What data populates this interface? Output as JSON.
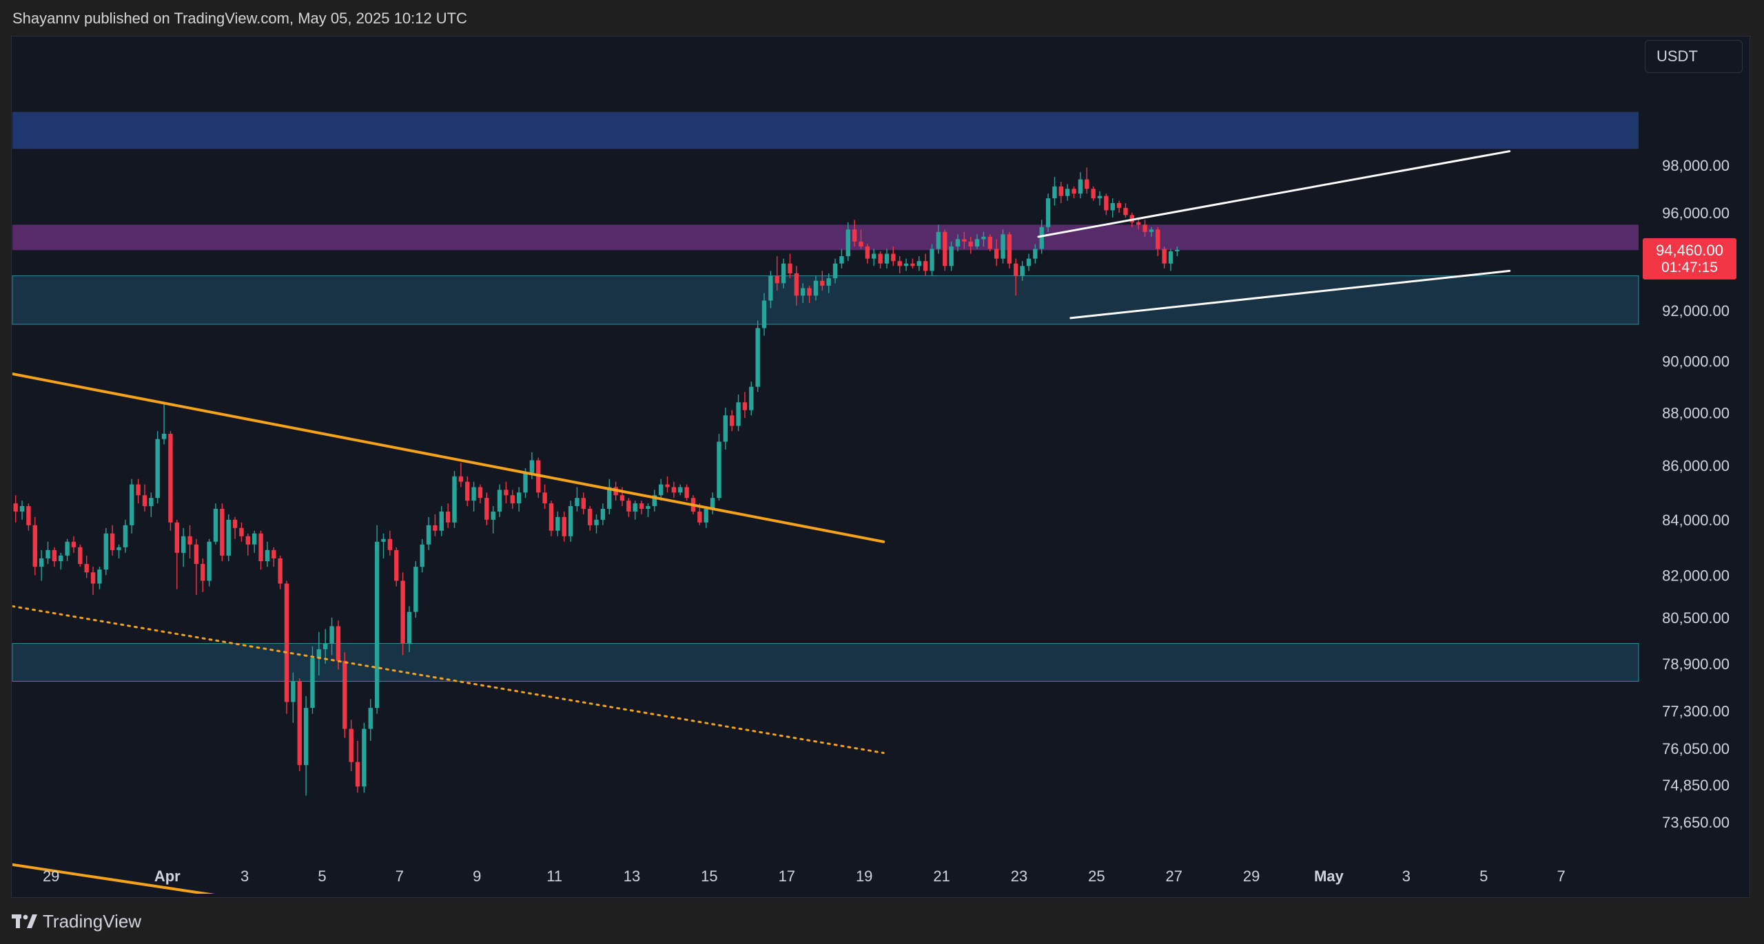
{
  "header": {
    "publish_text": "Shayannv published on TradingView.com, May 05, 2025 10:12 UTC"
  },
  "currency_badge": "USDT",
  "footer": {
    "brand": "TradingView"
  },
  "chart_data": {
    "type": "candlestick",
    "title": "",
    "xlabel": "",
    "ylabel": "",
    "y_scale": "log",
    "y_ticks": [
      {
        "label": "98,000.00",
        "value": 98000
      },
      {
        "label": "96,000.00",
        "value": 96000
      },
      {
        "label": "92,000.00",
        "value": 92000
      },
      {
        "label": "90,000.00",
        "value": 90000
      },
      {
        "label": "88,000.00",
        "value": 88000
      },
      {
        "label": "86,000.00",
        "value": 86000
      },
      {
        "label": "84,000.00",
        "value": 84000
      },
      {
        "label": "82,000.00",
        "value": 82000
      },
      {
        "label": "80,500.00",
        "value": 80500
      },
      {
        "label": "78,900.00",
        "value": 78900
      },
      {
        "label": "77,300.00",
        "value": 77300
      },
      {
        "label": "76,050.00",
        "value": 76050
      },
      {
        "label": "74,850.00",
        "value": 74850
      },
      {
        "label": "73,650.00",
        "value": 73650
      }
    ],
    "x_ticks": [
      {
        "label": "29",
        "date": "2025-03-29",
        "bold": false
      },
      {
        "label": "Apr",
        "date": "2025-04-01",
        "bold": true
      },
      {
        "label": "3",
        "date": "2025-04-03",
        "bold": false
      },
      {
        "label": "5",
        "date": "2025-04-05",
        "bold": false
      },
      {
        "label": "7",
        "date": "2025-04-07",
        "bold": false
      },
      {
        "label": "9",
        "date": "2025-04-09",
        "bold": false
      },
      {
        "label": "11",
        "date": "2025-04-11",
        "bold": false
      },
      {
        "label": "13",
        "date": "2025-04-13",
        "bold": false
      },
      {
        "label": "15",
        "date": "2025-04-15",
        "bold": false
      },
      {
        "label": "17",
        "date": "2025-04-17",
        "bold": false
      },
      {
        "label": "19",
        "date": "2025-04-19",
        "bold": false
      },
      {
        "label": "21",
        "date": "2025-04-21",
        "bold": false
      },
      {
        "label": "23",
        "date": "2025-04-23",
        "bold": false
      },
      {
        "label": "25",
        "date": "2025-04-25",
        "bold": false
      },
      {
        "label": "27",
        "date": "2025-04-27",
        "bold": false
      },
      {
        "label": "29",
        "date": "2025-04-29",
        "bold": false
      },
      {
        "label": "May",
        "date": "2025-05-01",
        "bold": true
      },
      {
        "label": "3",
        "date": "2025-05-03",
        "bold": false
      },
      {
        "label": "5",
        "date": "2025-05-05",
        "bold": false
      },
      {
        "label": "7",
        "date": "2025-05-07",
        "bold": false
      }
    ],
    "x_range": [
      "2025-03-28T00:00",
      "2025-05-09T00:00"
    ],
    "current_price": {
      "price_label": "94,460.00",
      "countdown": "01:47:15",
      "value": 94460,
      "color": "#f23645"
    },
    "zones": [
      {
        "from": 98700,
        "to": 100300,
        "color": "#1f3a73"
      },
      {
        "from": 94450,
        "to": 95500,
        "color": "#5b2c6f"
      },
      {
        "from": 91450,
        "to": 93400,
        "color": "#183548"
      },
      {
        "from": 78300,
        "to": 79600,
        "color": "#183548"
      }
    ],
    "trendlines": [
      {
        "name": "descending resistance",
        "style": "solid",
        "color": "#f7a21b",
        "from": [
          "2025-03-28T00:00",
          89500
        ],
        "to": [
          "2025-04-19T12:00",
          83200
        ]
      },
      {
        "name": "lower descending line",
        "style": "solid",
        "color": "#f7a21b",
        "from": [
          "2025-03-28T00:00",
          72300
        ],
        "to": [
          "2025-04-02T12:00",
          71300
        ]
      },
      {
        "name": "dotted descending line",
        "style": "dotted",
        "color": "#f7a21b",
        "from": [
          "2025-03-28T00:00",
          80900
        ],
        "to": [
          "2025-04-19T12:00",
          75900
        ]
      },
      {
        "name": "channel upper",
        "style": "solid",
        "color": "#ffffff",
        "from": [
          "2025-04-23T12:00",
          95000
        ],
        "to": [
          "2025-05-05T16:00",
          98600
        ]
      },
      {
        "name": "channel lower",
        "style": "solid",
        "color": "#ffffff",
        "from": [
          "2025-04-24T08:00",
          91700
        ],
        "to": [
          "2025-05-05T16:00",
          93600
        ]
      }
    ],
    "colors": {
      "up": "#26a69a",
      "down": "#f23645",
      "background": "#131722",
      "axis_text": "#d1d4dc"
    },
    "candles_interval_hours": 4,
    "candles_start": "2025-03-28T00:00",
    "candles_ohlc": [
      [
        84600,
        84900,
        83900,
        84300
      ],
      [
        84300,
        84700,
        84000,
        84500
      ],
      [
        84500,
        84600,
        83600,
        83800
      ],
      [
        83800,
        84100,
        82000,
        82300
      ],
      [
        82300,
        82900,
        81800,
        82600
      ],
      [
        82600,
        83200,
        82400,
        82900
      ],
      [
        82900,
        83000,
        82300,
        82500
      ],
      [
        82500,
        82800,
        82200,
        82700
      ],
      [
        82700,
        83300,
        82500,
        83200
      ],
      [
        83200,
        83400,
        82800,
        83000
      ],
      [
        83000,
        83100,
        82300,
        82400
      ],
      [
        82400,
        82700,
        81900,
        82100
      ],
      [
        82100,
        82300,
        81300,
        81700
      ],
      [
        81700,
        82300,
        81500,
        82200
      ],
      [
        82200,
        83700,
        82000,
        83500
      ],
      [
        83500,
        83800,
        82700,
        82900
      ],
      [
        82900,
        83100,
        82600,
        83000
      ],
      [
        83000,
        84000,
        82800,
        83800
      ],
      [
        83800,
        85500,
        83500,
        85300
      ],
      [
        85300,
        85500,
        84600,
        84900
      ],
      [
        84900,
        85300,
        84300,
        84500
      ],
      [
        84500,
        85000,
        84100,
        84800
      ],
      [
        84800,
        87300,
        84600,
        87000
      ],
      [
        87000,
        88400,
        86800,
        87200
      ],
      [
        87200,
        87300,
        83600,
        83900
      ],
      [
        83900,
        84000,
        81500,
        82800
      ],
      [
        82800,
        83700,
        82300,
        83400
      ],
      [
        83400,
        83800,
        82600,
        83100
      ],
      [
        83100,
        83300,
        81300,
        82400
      ],
      [
        82400,
        82600,
        81400,
        81800
      ],
      [
        81800,
        83300,
        81600,
        83200
      ],
      [
        83200,
        84600,
        83100,
        84400
      ],
      [
        84400,
        84600,
        82500,
        82700
      ],
      [
        82700,
        84200,
        82500,
        84000
      ],
      [
        84000,
        84100,
        83300,
        83700
      ],
      [
        83700,
        83900,
        83200,
        83400
      ],
      [
        83400,
        83500,
        82700,
        83100
      ],
      [
        83100,
        83600,
        82800,
        83500
      ],
      [
        83500,
        83600,
        82200,
        82500
      ],
      [
        82500,
        83200,
        82300,
        82900
      ],
      [
        82900,
        83000,
        82300,
        82600
      ],
      [
        82600,
        82700,
        81500,
        81700
      ],
      [
        81700,
        81800,
        77200,
        77600
      ],
      [
        77600,
        78600,
        76900,
        78300
      ],
      [
        78300,
        78400,
        75300,
        75500
      ],
      [
        75500,
        77800,
        74500,
        77400
      ],
      [
        77400,
        79500,
        77200,
        79100
      ],
      [
        79100,
        80000,
        78500,
        79400
      ],
      [
        79400,
        80100,
        78900,
        79600
      ],
      [
        79600,
        80500,
        79200,
        80200
      ],
      [
        80200,
        80400,
        78700,
        79000
      ],
      [
        79000,
        79300,
        76400,
        76700
      ],
      [
        76700,
        77000,
        75300,
        75600
      ],
      [
        75600,
        76300,
        74600,
        74800
      ],
      [
        74800,
        76900,
        74600,
        76700
      ],
      [
        76700,
        77700,
        76300,
        77400
      ],
      [
        77400,
        83800,
        77200,
        83200
      ],
      [
        83200,
        83500,
        82600,
        83300
      ],
      [
        83300,
        83600,
        82700,
        82900
      ],
      [
        82900,
        83000,
        81600,
        81800
      ],
      [
        81800,
        82100,
        79200,
        79600
      ],
      [
        79600,
        80900,
        79300,
        80700
      ],
      [
        80700,
        82500,
        80500,
        82300
      ],
      [
        82300,
        83300,
        82100,
        83100
      ],
      [
        83100,
        84100,
        82900,
        83800
      ],
      [
        83800,
        84200,
        83400,
        83600
      ],
      [
        83600,
        84500,
        83400,
        84300
      ],
      [
        84300,
        84600,
        83700,
        83900
      ],
      [
        83900,
        85800,
        83700,
        85600
      ],
      [
        85600,
        86100,
        85200,
        85400
      ],
      [
        85400,
        85600,
        84500,
        84700
      ],
      [
        84700,
        85400,
        84300,
        85200
      ],
      [
        85200,
        85300,
        84600,
        84800
      ],
      [
        84800,
        85000,
        83800,
        84000
      ],
      [
        84000,
        84500,
        83500,
        84300
      ],
      [
        84300,
        85300,
        84100,
        85100
      ],
      [
        85100,
        85400,
        84600,
        84900
      ],
      [
        84900,
        85100,
        84400,
        84600
      ],
      [
        84600,
        85200,
        84300,
        85000
      ],
      [
        85000,
        85900,
        84800,
        85700
      ],
      [
        85700,
        86500,
        85500,
        86200
      ],
      [
        86200,
        86300,
        84800,
        85000
      ],
      [
        85000,
        85300,
        84400,
        84600
      ],
      [
        84600,
        84700,
        83400,
        83600
      ],
      [
        83600,
        84300,
        83400,
        84100
      ],
      [
        84100,
        84300,
        83200,
        83400
      ],
      [
        83400,
        84700,
        83200,
        84500
      ],
      [
        84500,
        85200,
        84300,
        84800
      ],
      [
        84800,
        85000,
        84200,
        84400
      ],
      [
        84400,
        84500,
        83600,
        83800
      ],
      [
        83800,
        84200,
        83500,
        84000
      ],
      [
        84000,
        84600,
        83800,
        84400
      ],
      [
        84400,
        85500,
        84200,
        85200
      ],
      [
        85200,
        85400,
        84700,
        84900
      ],
      [
        84900,
        85200,
        84500,
        84700
      ],
      [
        84700,
        84800,
        84100,
        84300
      ],
      [
        84300,
        84700,
        84000,
        84600
      ],
      [
        84600,
        84700,
        84200,
        84400
      ],
      [
        84400,
        84600,
        84100,
        84500
      ],
      [
        84500,
        85100,
        84300,
        84900
      ],
      [
        84900,
        85500,
        84700,
        85300
      ],
      [
        85300,
        85600,
        85000,
        85200
      ],
      [
        85200,
        85400,
        84800,
        85000
      ],
      [
        85000,
        85300,
        84900,
        85200
      ],
      [
        85200,
        85300,
        84700,
        84800
      ],
      [
        84800,
        84900,
        84200,
        84300
      ],
      [
        84300,
        84600,
        83800,
        83900
      ],
      [
        83900,
        84500,
        83700,
        84400
      ],
      [
        84400,
        85000,
        84200,
        84800
      ],
      [
        84800,
        87200,
        84700,
        86900
      ],
      [
        86900,
        88200,
        86600,
        87900
      ],
      [
        87900,
        88100,
        87300,
        87500
      ],
      [
        87500,
        88700,
        87300,
        88400
      ],
      [
        88400,
        88800,
        87800,
        88100
      ],
      [
        88100,
        89200,
        87900,
        89000
      ],
      [
        89000,
        91600,
        88800,
        91300
      ],
      [
        91300,
        92700,
        91000,
        92400
      ],
      [
        92400,
        93600,
        92100,
        93400
      ],
      [
        93400,
        94200,
        92800,
        93100
      ],
      [
        93100,
        94100,
        92900,
        93900
      ],
      [
        93900,
        94300,
        93300,
        93500
      ],
      [
        93500,
        93800,
        92200,
        92600
      ],
      [
        92600,
        93100,
        92300,
        92900
      ],
      [
        92900,
        93000,
        92300,
        92600
      ],
      [
        92600,
        93400,
        92400,
        93200
      ],
      [
        93200,
        93600,
        92800,
        93000
      ],
      [
        93000,
        93500,
        92700,
        93300
      ],
      [
        93300,
        94100,
        93100,
        93900
      ],
      [
        93900,
        94500,
        93700,
        94200
      ],
      [
        94200,
        95600,
        94000,
        95300
      ],
      [
        95300,
        95700,
        94600,
        94800
      ],
      [
        94800,
        95300,
        94500,
        94600
      ],
      [
        94600,
        94700,
        93900,
        94100
      ],
      [
        94100,
        94500,
        93800,
        94300
      ],
      [
        94300,
        94400,
        93700,
        93900
      ],
      [
        93900,
        94500,
        93700,
        94300
      ],
      [
        94300,
        94600,
        93800,
        94000
      ],
      [
        94000,
        94200,
        93500,
        93800
      ],
      [
        93800,
        94100,
        93600,
        93900
      ],
      [
        93900,
        94100,
        93700,
        93800
      ],
      [
        93800,
        94200,
        93600,
        94000
      ],
      [
        94000,
        94300,
        93400,
        93600
      ],
      [
        93600,
        94700,
        93400,
        94500
      ],
      [
        94500,
        95500,
        94300,
        95200
      ],
      [
        95200,
        95300,
        93600,
        93800
      ],
      [
        93800,
        94800,
        93600,
        94600
      ],
      [
        94600,
        95100,
        94400,
        94900
      ],
      [
        94900,
        95200,
        94500,
        94800
      ],
      [
        94800,
        95000,
        94300,
        94600
      ],
      [
        94600,
        95100,
        94500,
        94900
      ],
      [
        94900,
        95200,
        94600,
        95000
      ],
      [
        95000,
        95100,
        94400,
        94500
      ],
      [
        94500,
        94900,
        93800,
        94100
      ],
      [
        94100,
        95300,
        93900,
        95100
      ],
      [
        95100,
        95200,
        93700,
        93900
      ],
      [
        93900,
        94100,
        92600,
        93400
      ],
      [
        93400,
        94000,
        93200,
        93800
      ],
      [
        93800,
        94300,
        93600,
        94100
      ],
      [
        94100,
        94700,
        93900,
        94500
      ],
      [
        94500,
        95700,
        94300,
        95400
      ],
      [
        95400,
        96800,
        95200,
        96600
      ],
      [
        96600,
        97500,
        96300,
        97100
      ],
      [
        97100,
        97300,
        96400,
        96700
      ],
      [
        96700,
        97200,
        96500,
        97000
      ],
      [
        97000,
        97100,
        96600,
        96800
      ],
      [
        96800,
        97700,
        96600,
        97400
      ],
      [
        97400,
        97900,
        96800,
        97000
      ],
      [
        97000,
        97100,
        96500,
        96600
      ],
      [
        96600,
        96900,
        96300,
        96700
      ],
      [
        96700,
        96800,
        95900,
        96100
      ],
      [
        96100,
        96600,
        95800,
        96400
      ],
      [
        96400,
        96500,
        96000,
        96200
      ],
      [
        96200,
        96400,
        95800,
        95900
      ],
      [
        95900,
        96000,
        95400,
        95600
      ],
      [
        95600,
        95800,
        95300,
        95500
      ],
      [
        95500,
        95700,
        95000,
        95200
      ],
      [
        95200,
        95400,
        95000,
        95300
      ],
      [
        95300,
        95400,
        94200,
        94500
      ],
      [
        94500,
        94600,
        93700,
        93900
      ],
      [
        93900,
        94500,
        93600,
        94400
      ],
      [
        94400,
        94600,
        94200,
        94460
      ]
    ]
  }
}
